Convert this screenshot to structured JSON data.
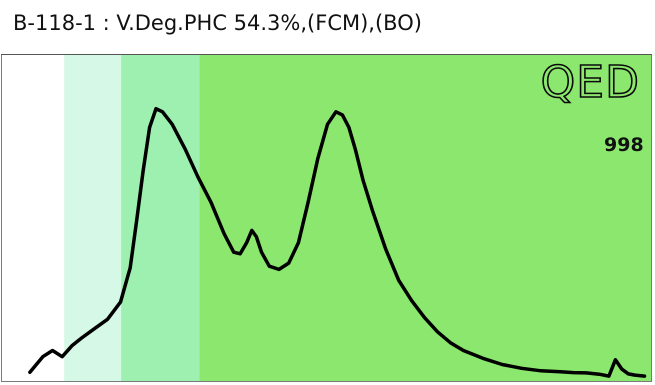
{
  "window": {
    "title": "B-118-1 : V.Deg.PHC 54.3%,(FCM),(BO)"
  },
  "logo": {
    "text": "QED"
  },
  "count_label": "998",
  "colors": {
    "band_white": "#ffffff",
    "band_pale": "#d6f8e6",
    "band_mint": "#9ef0b0",
    "band_green": "#8ce76e",
    "curve": "#000000"
  },
  "chart_data": {
    "type": "line",
    "title": "B-118-1 : V.Deg.PHC 54.3%,(FCM),(BO)",
    "xlabel": "",
    "ylabel": "",
    "xlim": [
      0,
      100
    ],
    "ylim": [
      0,
      100
    ],
    "grid": false,
    "legend": "none",
    "bands": [
      {
        "from": 0,
        "to": 9.3,
        "color": "#ffffff"
      },
      {
        "from": 9.3,
        "to": 18.1,
        "color": "#d6f8e6"
      },
      {
        "from": 18.1,
        "to": 30.2,
        "color": "#9ef0b0"
      },
      {
        "from": 30.2,
        "to": 100,
        "color": "#8ce76e"
      }
    ],
    "series": [
      {
        "x": [
          4,
          6,
          7.5,
          9,
          10.5,
          12,
          14,
          16,
          18,
          19.5,
          20.5,
          21.5,
          22.5,
          23.5,
          24.5,
          26,
          28,
          30,
          32,
          34,
          35.5,
          36.5,
          37.5,
          38.3,
          39,
          39.8,
          41,
          42.5,
          44,
          45.5,
          47,
          48.5,
          50,
          51.3,
          52.3,
          53.3,
          54.3,
          55.5,
          57,
          59,
          61,
          63,
          65,
          67,
          69,
          71,
          74,
          77,
          80,
          83,
          86,
          88,
          90,
          92,
          93.5,
          94.5,
          95.5,
          96.5,
          97.5,
          99
        ],
        "y": [
          1.5,
          6.5,
          8.5,
          6.5,
          10,
          12.5,
          15.5,
          18.5,
          24,
          35,
          50,
          66,
          80,
          86,
          85,
          81,
          73,
          64,
          56,
          46,
          40,
          39.5,
          43,
          47,
          45,
          40,
          35.5,
          34.5,
          36.5,
          43,
          56,
          70,
          81,
          85,
          84,
          80,
          73,
          63,
          53,
          41,
          31,
          24.5,
          19,
          14.5,
          11,
          8.5,
          6,
          4,
          2.8,
          2,
          1.7,
          1.4,
          1.3,
          0.9,
          0.3,
          5.5,
          2.5,
          1,
          0.6,
          0.3
        ]
      }
    ]
  }
}
